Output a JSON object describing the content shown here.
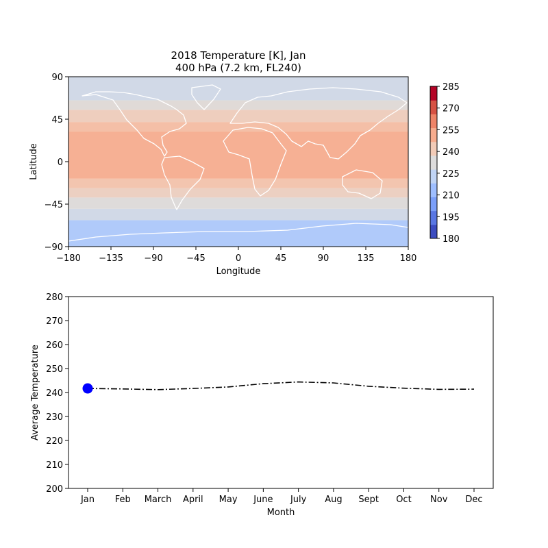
{
  "chart_data": [
    {
      "type": "heatmap",
      "title_line1": "2018 Temperature [K], Jan",
      "title_line2": "400 hPa (7.2 km, FL240)",
      "xlabel": "Longitude",
      "ylabel": "Latitude",
      "xlim": [
        -180,
        180
      ],
      "ylim": [
        -90,
        90
      ],
      "xticks": [
        -180,
        -135,
        -90,
        -45,
        0,
        45,
        90,
        135,
        180
      ],
      "xtick_labels": [
        "−180",
        "−135",
        "−90",
        "−45",
        "0",
        "45",
        "90",
        "135",
        "180"
      ],
      "yticks": [
        -90,
        -45,
        0,
        45,
        90
      ],
      "ytick_labels": [
        "−90",
        "−45",
        "0",
        "45",
        "90"
      ],
      "colorbar": {
        "min": 180,
        "max": 285,
        "ticks": [
          "180",
          "195",
          "210",
          "225",
          "240",
          "255",
          "270",
          "285"
        ],
        "colors": [
          "#3b4cc0",
          "#5977e3",
          "#7b9ff9",
          "#9ebeff",
          "#c0d4f5",
          "#dddcdc",
          "#f2cbb7",
          "#f7ac8e",
          "#ee8468",
          "#d65244",
          "#b40426"
        ]
      },
      "latitude_bands": [
        {
          "lat": [
            -90,
            -62
          ],
          "kelvin": 217
        },
        {
          "lat": [
            -62,
            -50
          ],
          "kelvin": 228
        },
        {
          "lat": [
            -50,
            -38
          ],
          "kelvin": 233
        },
        {
          "lat": [
            -38,
            -28
          ],
          "kelvin": 240
        },
        {
          "lat": [
            -28,
            -18
          ],
          "kelvin": 245
        },
        {
          "lat": [
            -18,
            32
          ],
          "kelvin": 252
        },
        {
          "lat": [
            32,
            42
          ],
          "kelvin": 247
        },
        {
          "lat": [
            42,
            55
          ],
          "kelvin": 241
        },
        {
          "lat": [
            55,
            65
          ],
          "kelvin": 234
        },
        {
          "lat": [
            65,
            90
          ],
          "kelvin": 228
        }
      ],
      "map_overlay": "coastlines"
    },
    {
      "type": "line",
      "xlabel": "Month",
      "ylabel": "Average Temperature",
      "categories": [
        "Jan",
        "Feb",
        "March",
        "April",
        "May",
        "June",
        "July",
        "Aug",
        "Sept",
        "Oct",
        "Nov",
        "Dec"
      ],
      "yticks": [
        200,
        210,
        220,
        230,
        240,
        250,
        260,
        270,
        280
      ],
      "ylim": [
        200,
        280
      ],
      "series": [
        {
          "values": [
            241.7,
            241.5,
            241.2,
            241.7,
            242.3,
            243.7,
            244.4,
            244.0,
            242.6,
            241.8,
            241.3,
            241.4
          ],
          "color": "#000000",
          "style": "dash-dot"
        }
      ],
      "highlight": {
        "index": 0,
        "color": "#0000ff"
      }
    }
  ]
}
